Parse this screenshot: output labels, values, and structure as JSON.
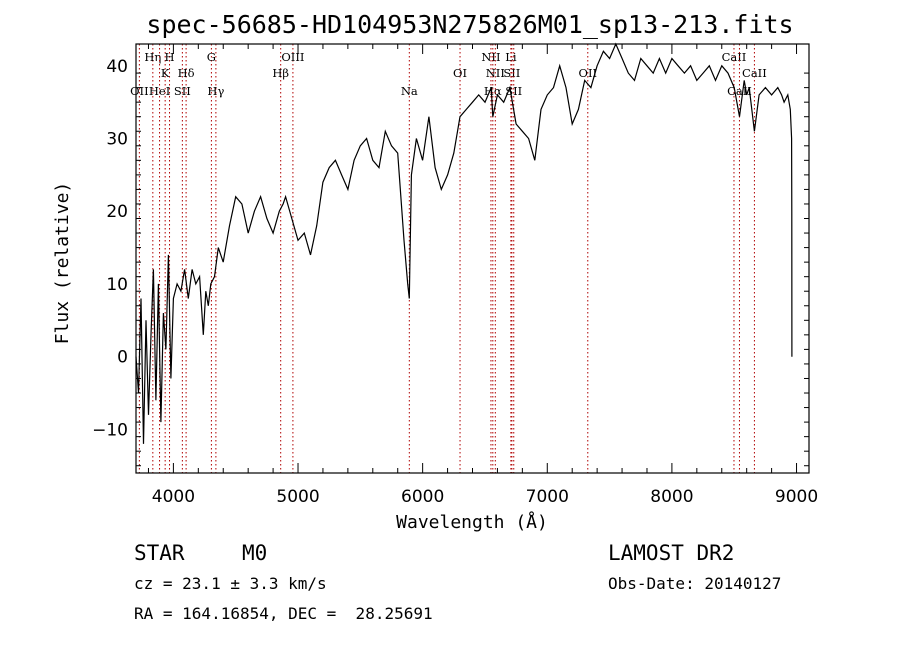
{
  "chart_data": {
    "type": "line",
    "title": "spec-56685-HD104953N275826M01_sp13-213.fits",
    "xlabel": "Wavelength (Å)",
    "ylabel": "Flux (relative)",
    "xlim": [
      3700,
      9100
    ],
    "ylim": [
      -16,
      43
    ],
    "x_ticks": [
      4000,
      5000,
      6000,
      7000,
      8000,
      9000
    ],
    "y_ticks": [
      -10,
      0,
      10,
      20,
      30,
      40
    ],
    "grid": false,
    "series": [
      {
        "x": [
          3700,
          3720,
          3740,
          3760,
          3780,
          3800,
          3820,
          3840,
          3860,
          3880,
          3900,
          3920,
          3940,
          3960,
          3980,
          4000,
          4030,
          4060,
          4090,
          4120,
          4150,
          4180,
          4210,
          4240,
          4260,
          4280,
          4300,
          4330,
          4360,
          4400,
          4450,
          4500,
          4550,
          4600,
          4650,
          4700,
          4750,
          4800,
          4850,
          4880,
          4900,
          4950,
          5000,
          5050,
          5100,
          5150,
          5200,
          5250,
          5300,
          5350,
          5400,
          5450,
          5500,
          5550,
          5600,
          5650,
          5700,
          5750,
          5800,
          5850,
          5880,
          5893,
          5910,
          5950,
          6000,
          6050,
          6100,
          6150,
          6200,
          6250,
          6300,
          6350,
          6400,
          6450,
          6500,
          6550,
          6563,
          6600,
          6650,
          6700,
          6750,
          6800,
          6850,
          6900,
          6950,
          7000,
          7050,
          7100,
          7150,
          7200,
          7250,
          7300,
          7350,
          7400,
          7450,
          7500,
          7550,
          7600,
          7650,
          7700,
          7750,
          7800,
          7850,
          7900,
          7950,
          8000,
          8050,
          8100,
          8150,
          8200,
          8250,
          8300,
          8350,
          8400,
          8450,
          8500,
          8542,
          8580,
          8600,
          8620,
          8662,
          8700,
          8750,
          8800,
          8850,
          8880,
          8900,
          8930,
          8950,
          8960,
          8962,
          8963
        ],
        "y": [
          0,
          -5,
          8,
          -12,
          5,
          -8,
          3,
          12,
          -6,
          10,
          -9,
          6,
          1,
          14,
          -3,
          8,
          10,
          9,
          12,
          8,
          12,
          10,
          11,
          3,
          9,
          7,
          10,
          11,
          15,
          13,
          18,
          22,
          21,
          17,
          20,
          22,
          19,
          17,
          20,
          21,
          22,
          19,
          16,
          17,
          14,
          18,
          24,
          26,
          27,
          25,
          23,
          27,
          29,
          30,
          27,
          26,
          31,
          29,
          28,
          16,
          10,
          8,
          25,
          30,
          27,
          33,
          26,
          23,
          25,
          28,
          33,
          34,
          35,
          36,
          35,
          37,
          33,
          36,
          35,
          37,
          32,
          31,
          30,
          27,
          34,
          36,
          37,
          40,
          37,
          32,
          34,
          38,
          37,
          40,
          42,
          41,
          43,
          41,
          39,
          38,
          41,
          40,
          39,
          41,
          39,
          41,
          40,
          39,
          40,
          38,
          39,
          40,
          38,
          40,
          39,
          37,
          33,
          38,
          36,
          37,
          31,
          36,
          37,
          36,
          37,
          36,
          35,
          36,
          34,
          30,
          20,
          0
        ]
      }
    ],
    "line_markers": [
      {
        "name": "OII",
        "wl": 3727,
        "row": 3
      },
      {
        "name": "Hη",
        "wl": 3835,
        "row": 1
      },
      {
        "name": "HeI",
        "wl": 3889,
        "row": 3
      },
      {
        "name": "K",
        "wl": 3934,
        "row": 2
      },
      {
        "name": "H",
        "wl": 3969,
        "row": 1
      },
      {
        "name": "SII",
        "wl": 4072,
        "row": 3
      },
      {
        "name": "Hδ",
        "wl": 4102,
        "row": 2
      },
      {
        "name": "G",
        "wl": 4305,
        "row": 1
      },
      {
        "name": "Hγ",
        "wl": 4341,
        "row": 3
      },
      {
        "name": "Hβ",
        "wl": 4861,
        "row": 2
      },
      {
        "name": "OIII",
        "wl": 4959,
        "row": 1
      },
      {
        "name": "Na",
        "wl": 5893,
        "row": 3
      },
      {
        "name": "OI",
        "wl": 6300,
        "row": 2
      },
      {
        "name": "NII",
        "wl": 6548,
        "row": 1
      },
      {
        "name": "Hα",
        "wl": 6563,
        "row": 3
      },
      {
        "name": "NII",
        "wl": 6583,
        "row": 2
      },
      {
        "name": "Li",
        "wl": 6708,
        "row": 1
      },
      {
        "name": "SII",
        "wl": 6716,
        "row": 2
      },
      {
        "name": "SII",
        "wl": 6731,
        "row": 3
      },
      {
        "name": "OII",
        "wl": 7325,
        "row": 2
      },
      {
        "name": "CaII",
        "wl": 8498,
        "row": 1
      },
      {
        "name": "CaII",
        "wl": 8542,
        "row": 3
      },
      {
        "name": "CaII",
        "wl": 8662,
        "row": 2
      }
    ]
  },
  "info": {
    "object_class": "STAR",
    "subclass": "M0",
    "survey": "LAMOST DR2",
    "redshift_line": "cz = 23.1 ± 3.3 km/s",
    "obs_date_line": "Obs-Date: 20140127",
    "coords_line": "RA = 164.16854, DEC =  28.25691"
  }
}
